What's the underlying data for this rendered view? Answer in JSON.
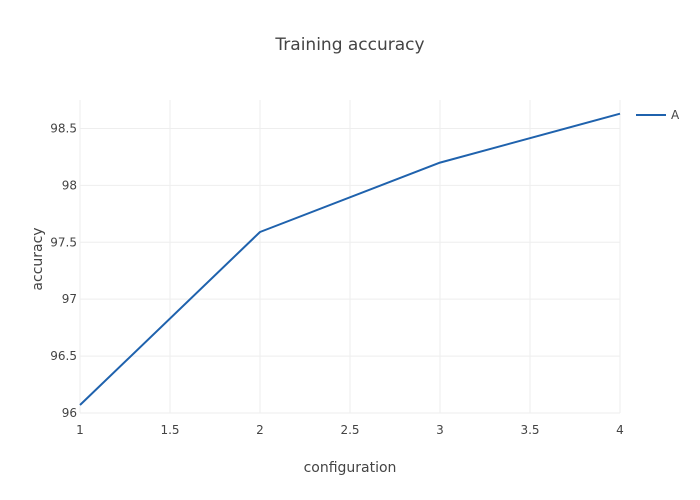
{
  "chart_data": {
    "type": "line",
    "title": "Training accuracy",
    "xlabel": "configuration",
    "ylabel": "accuracy",
    "xlim": [
      1,
      4
    ],
    "ylim": [
      96,
      98.75
    ],
    "x_ticks": [
      1,
      1.5,
      2,
      2.5,
      3,
      3.5,
      4
    ],
    "x_tick_labels": [
      "1",
      "1.5",
      "2",
      "2.5",
      "3",
      "3.5",
      "4"
    ],
    "y_ticks": [
      96,
      96.5,
      97,
      97.5,
      98,
      98.5
    ],
    "y_tick_labels": [
      "96",
      "96.5",
      "97",
      "97.5",
      "98",
      "98.5"
    ],
    "grid": true,
    "legend_position": "top-right",
    "series": [
      {
        "name": "A",
        "color": "#1f62ad",
        "x": [
          1,
          2,
          3,
          4
        ],
        "y": [
          96.07,
          97.59,
          98.2,
          98.63
        ]
      }
    ]
  }
}
